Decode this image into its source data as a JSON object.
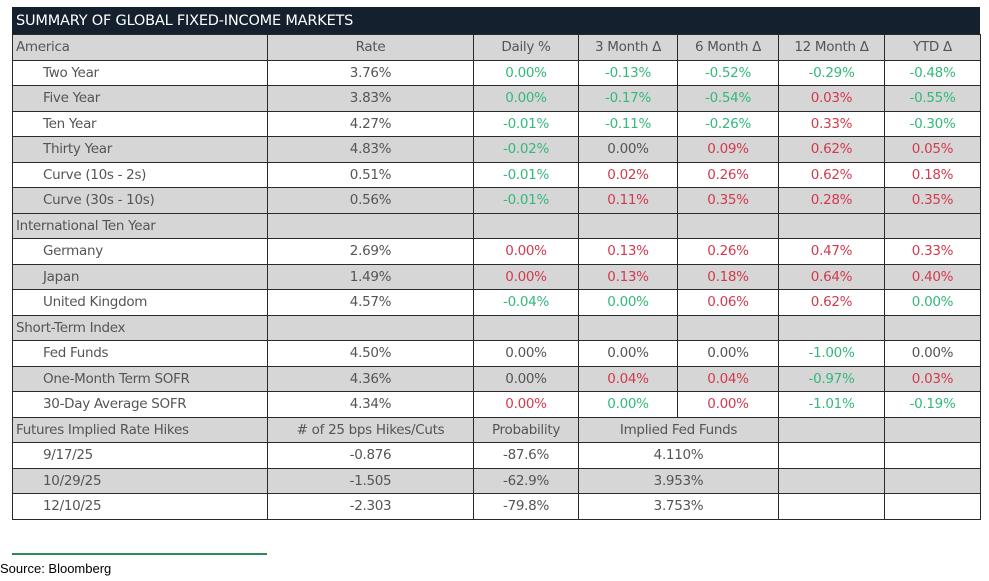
{
  "title": "SUMMARY OF GLOBAL FIXED-INCOME MARKETS",
  "colors": {
    "header_bg": "#14202e",
    "positive_change": "#d23a4e",
    "negative_change": "#33b97a",
    "neutral": "#555555",
    "shade": "#d6d6d6"
  },
  "sections": [
    {
      "header": [
        "America",
        "Rate",
        "Daily %",
        "3 Month Δ",
        "6 Month Δ",
        "12 Month Δ",
        "YTD Δ"
      ],
      "rows": [
        {
          "label": "Two Year",
          "cells": [
            [
              "3.76%",
              "n"
            ],
            [
              "0.00%",
              "g"
            ],
            [
              "-0.13%",
              "g"
            ],
            [
              "-0.52%",
              "g"
            ],
            [
              "-0.29%",
              "g"
            ],
            [
              "-0.48%",
              "g"
            ]
          ]
        },
        {
          "label": "Five Year",
          "cells": [
            [
              "3.83%",
              "n"
            ],
            [
              "0.00%",
              "g"
            ],
            [
              "-0.17%",
              "g"
            ],
            [
              "-0.54%",
              "g"
            ],
            [
              "0.03%",
              "r"
            ],
            [
              "-0.55%",
              "g"
            ]
          ]
        },
        {
          "label": "Ten Year",
          "cells": [
            [
              "4.27%",
              "n"
            ],
            [
              "-0.01%",
              "g"
            ],
            [
              "-0.11%",
              "g"
            ],
            [
              "-0.26%",
              "g"
            ],
            [
              "0.33%",
              "r"
            ],
            [
              "-0.30%",
              "g"
            ]
          ]
        },
        {
          "label": "Thirty Year",
          "cells": [
            [
              "4.83%",
              "n"
            ],
            [
              "-0.02%",
              "g"
            ],
            [
              "0.00%",
              "n"
            ],
            [
              "0.09%",
              "r"
            ],
            [
              "0.62%",
              "r"
            ],
            [
              "0.05%",
              "r"
            ]
          ]
        },
        {
          "label": "Curve (10s - 2s)",
          "cells": [
            [
              "0.51%",
              "n"
            ],
            [
              "-0.01%",
              "g"
            ],
            [
              "0.02%",
              "r"
            ],
            [
              "0.26%",
              "r"
            ],
            [
              "0.62%",
              "r"
            ],
            [
              "0.18%",
              "r"
            ]
          ]
        },
        {
          "label": "Curve (30s - 10s)",
          "cells": [
            [
              "0.56%",
              "n"
            ],
            [
              "-0.01%",
              "g"
            ],
            [
              "0.11%",
              "r"
            ],
            [
              "0.35%",
              "r"
            ],
            [
              "0.28%",
              "r"
            ],
            [
              "0.35%",
              "r"
            ]
          ]
        }
      ]
    },
    {
      "header": [
        "International Ten Year",
        "",
        "",
        "",
        "",
        "",
        ""
      ],
      "rows": [
        {
          "label": "Germany",
          "cells": [
            [
              "2.69%",
              "n"
            ],
            [
              "0.00%",
              "r"
            ],
            [
              "0.13%",
              "r"
            ],
            [
              "0.26%",
              "r"
            ],
            [
              "0.47%",
              "r"
            ],
            [
              "0.33%",
              "r"
            ]
          ]
        },
        {
          "label": "Japan",
          "cells": [
            [
              "1.49%",
              "n"
            ],
            [
              "0.00%",
              "r"
            ],
            [
              "0.13%",
              "r"
            ],
            [
              "0.18%",
              "r"
            ],
            [
              "0.64%",
              "r"
            ],
            [
              "0.40%",
              "r"
            ]
          ]
        },
        {
          "label": "United Kingdom",
          "cells": [
            [
              "4.57%",
              "n"
            ],
            [
              "-0.04%",
              "g"
            ],
            [
              "0.00%",
              "g"
            ],
            [
              "0.06%",
              "r"
            ],
            [
              "0.62%",
              "r"
            ],
            [
              "0.00%",
              "g"
            ]
          ]
        }
      ]
    },
    {
      "header": [
        "Short-Term Index",
        "",
        "",
        "",
        "",
        "",
        ""
      ],
      "rows": [
        {
          "label": "Fed Funds",
          "cells": [
            [
              "4.50%",
              "n"
            ],
            [
              "0.00%",
              "n"
            ],
            [
              "0.00%",
              "n"
            ],
            [
              "0.00%",
              "n"
            ],
            [
              "-1.00%",
              "g"
            ],
            [
              "0.00%",
              "n"
            ]
          ]
        },
        {
          "label": "One-Month Term SOFR",
          "cells": [
            [
              "4.36%",
              "n"
            ],
            [
              "0.00%",
              "n"
            ],
            [
              "0.04%",
              "r"
            ],
            [
              "0.04%",
              "r"
            ],
            [
              "-0.97%",
              "g"
            ],
            [
              "0.03%",
              "r"
            ]
          ]
        },
        {
          "label": "30-Day Average SOFR",
          "cells": [
            [
              "4.34%",
              "n"
            ],
            [
              "0.00%",
              "r"
            ],
            [
              "0.00%",
              "g"
            ],
            [
              "0.00%",
              "r"
            ],
            [
              "-1.01%",
              "g"
            ],
            [
              "-0.19%",
              "g"
            ]
          ]
        }
      ]
    }
  ],
  "futures": {
    "header": [
      "Futures Implied Rate Hikes",
      "# of 25 bps Hikes/Cuts",
      "Probability",
      "Implied Fed Funds"
    ],
    "rows": [
      {
        "date": "9/17/25",
        "hikes": "-0.876",
        "probability": "-87.6%",
        "implied": "4.110%"
      },
      {
        "date": "10/29/25",
        "hikes": "-1.505",
        "probability": "-62.9%",
        "implied": "3.953%"
      },
      {
        "date": "12/10/25",
        "hikes": "-2.303",
        "probability": "-79.8%",
        "implied": "3.753%"
      }
    ]
  },
  "source": "Source: Bloomberg"
}
